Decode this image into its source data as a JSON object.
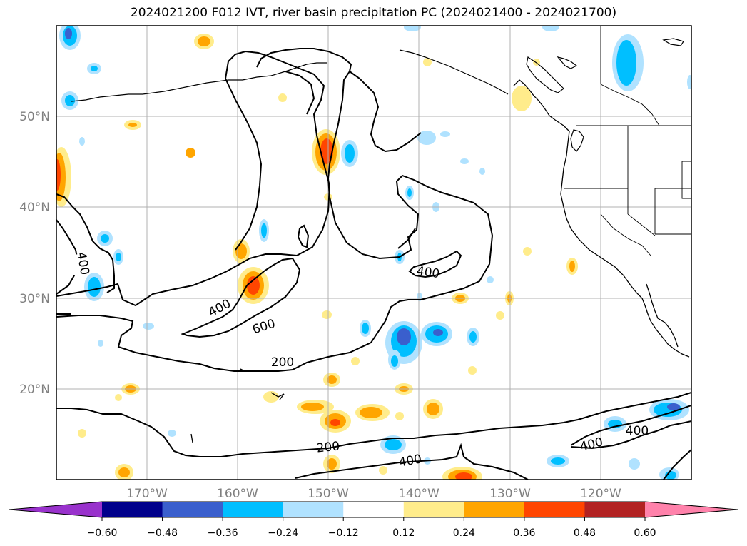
{
  "title": "2024021200 F012 IVT, river basin precipitation PC (2024021400 - 2024021700)",
  "map": {
    "lon_labels": [
      "170°W",
      "160°W",
      "150°W",
      "140°W",
      "130°W",
      "120°W"
    ],
    "lat_labels": [
      "50°N",
      "40°N",
      "30°N",
      "20°N"
    ],
    "lon_range": [
      -180,
      -110
    ],
    "lat_range": [
      10,
      60
    ],
    "contour_labels": [
      "400",
      "400",
      "600",
      "200",
      "400",
      "200",
      "400",
      "400",
      "400"
    ]
  },
  "colorbar": {
    "ticks": [
      "−0.60",
      "−0.48",
      "−0.36",
      "−0.24",
      "−0.12",
      "0.12",
      "0.24",
      "0.36",
      "0.48",
      "0.60"
    ],
    "colors": [
      "#9932cc",
      "#00008b",
      "#3a5fcd",
      "#00bfff",
      "#b0e2ff",
      "#ffffff",
      "#ffec8b",
      "#ffa500",
      "#ff4500",
      "#b22222",
      "#ff82ab"
    ]
  }
}
